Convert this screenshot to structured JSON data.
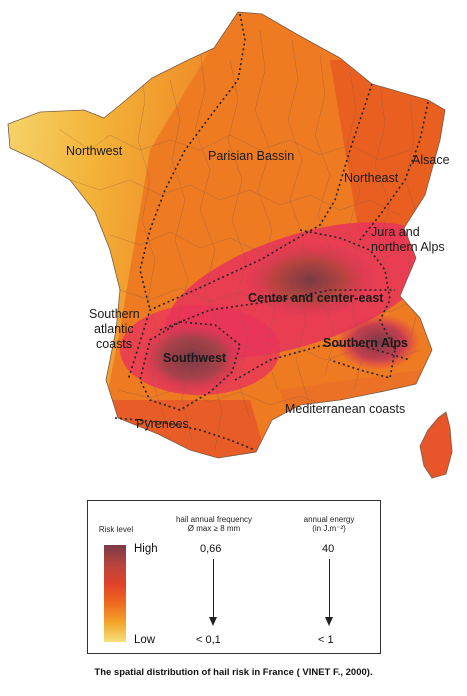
{
  "map": {
    "regions": [
      {
        "id": "northwest",
        "label": "Northwest"
      },
      {
        "id": "parisian",
        "label": "Parisian Bassin"
      },
      {
        "id": "alsace",
        "label": "Alsace"
      },
      {
        "id": "northeast",
        "label": "Northeast"
      },
      {
        "id": "jura1",
        "label": "Jura and"
      },
      {
        "id": "jura2",
        "label": "northern Alps"
      },
      {
        "id": "center",
        "label": "Center and center-east"
      },
      {
        "id": "satl1",
        "label": "Southern"
      },
      {
        "id": "satl2",
        "label": "atlantic"
      },
      {
        "id": "satl3",
        "label": "coasts"
      },
      {
        "id": "southwest",
        "label": "Southwest"
      },
      {
        "id": "salps",
        "label": "Southern Alps"
      },
      {
        "id": "pyrenees",
        "label": "Pyrenees"
      },
      {
        "id": "medit",
        "label": "Mediterranean coasts"
      }
    ],
    "colors": {
      "low": "#f6e17a",
      "medium_low": "#f3a52a",
      "medium": "#ee6a1f",
      "high": "#e0432a",
      "very_high": "#b7443f",
      "extreme": "#7a3a45",
      "hotspot": "#e8345a"
    }
  },
  "legend": {
    "risk_level": "Risk level",
    "high": "High",
    "low": "Low",
    "freq_title_1": "hail annual frequency",
    "freq_title_2": "Ø max ≥ 8 mm",
    "freq_top": "0,66",
    "freq_bottom": "< 0,1",
    "energy_title_1": "annual energy",
    "energy_title_2": "(in J.m⁻²)",
    "energy_top": "40",
    "energy_bottom": "< 1"
  },
  "caption": "The spatial distribution of hail risk in France ( VINET F., 2000)."
}
